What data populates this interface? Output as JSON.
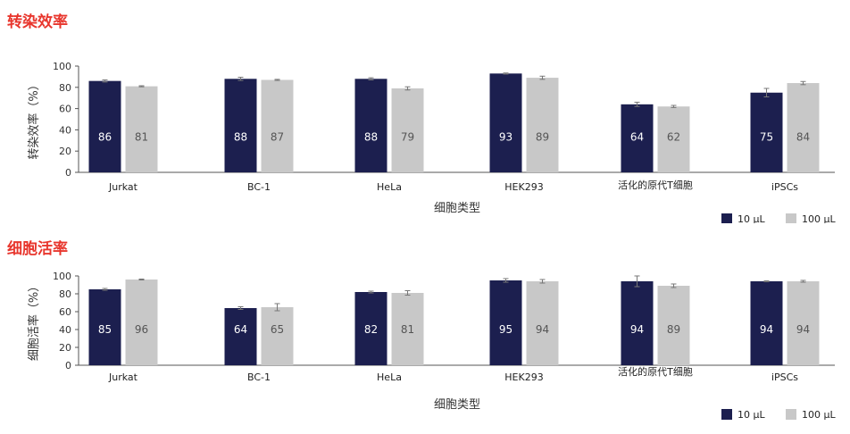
{
  "colors": {
    "series1": "#1c1f4f",
    "series2": "#c8c8c8",
    "title": "#e8362d",
    "axis": "#555555"
  },
  "chart_data": [
    {
      "type": "bar",
      "title": "转染效率",
      "xlabel": "细胞类型",
      "ylabel": "转染效率（%）",
      "ylim": [
        0,
        100
      ],
      "yticks": [
        "0",
        "20",
        "40",
        "60",
        "80",
        "100"
      ],
      "categories": [
        "Jurkat",
        "BC-1",
        "HeLa",
        "HEK293",
        "活化的原代T细胞",
        "iPSCs"
      ],
      "series": [
        {
          "name": "10 µL",
          "values": [
            86,
            88,
            88,
            93,
            64,
            75
          ],
          "errors": [
            1,
            1.5,
            1,
            0.5,
            2,
            4
          ]
        },
        {
          "name": "100 µL",
          "values": [
            81,
            87,
            79,
            89,
            62,
            84
          ],
          "errors": [
            0.5,
            0.5,
            1.5,
            1.5,
            1,
            1.5
          ]
        }
      ],
      "legend": "bottom-right"
    },
    {
      "type": "bar",
      "title": "细胞活率",
      "xlabel": "细胞类型",
      "ylabel": "细胞活率（%）",
      "ylim": [
        0,
        100
      ],
      "yticks": [
        "0",
        "20",
        "40",
        "60",
        "80",
        "100"
      ],
      "categories": [
        "Jurkat",
        "BC-1",
        "HeLa",
        "HEK293",
        "活化的原代T细胞",
        "iPSCs"
      ],
      "series": [
        {
          "name": "10 µL",
          "values": [
            85,
            64,
            82,
            95,
            94,
            94
          ],
          "errors": [
            1,
            1.5,
            1,
            2,
            6,
            0.5
          ]
        },
        {
          "name": "100 µL",
          "values": [
            96,
            65,
            81,
            94,
            89,
            94
          ],
          "errors": [
            0.5,
            4,
            2.5,
            2,
            2,
            1
          ]
        }
      ],
      "legend": "bottom-right"
    }
  ]
}
